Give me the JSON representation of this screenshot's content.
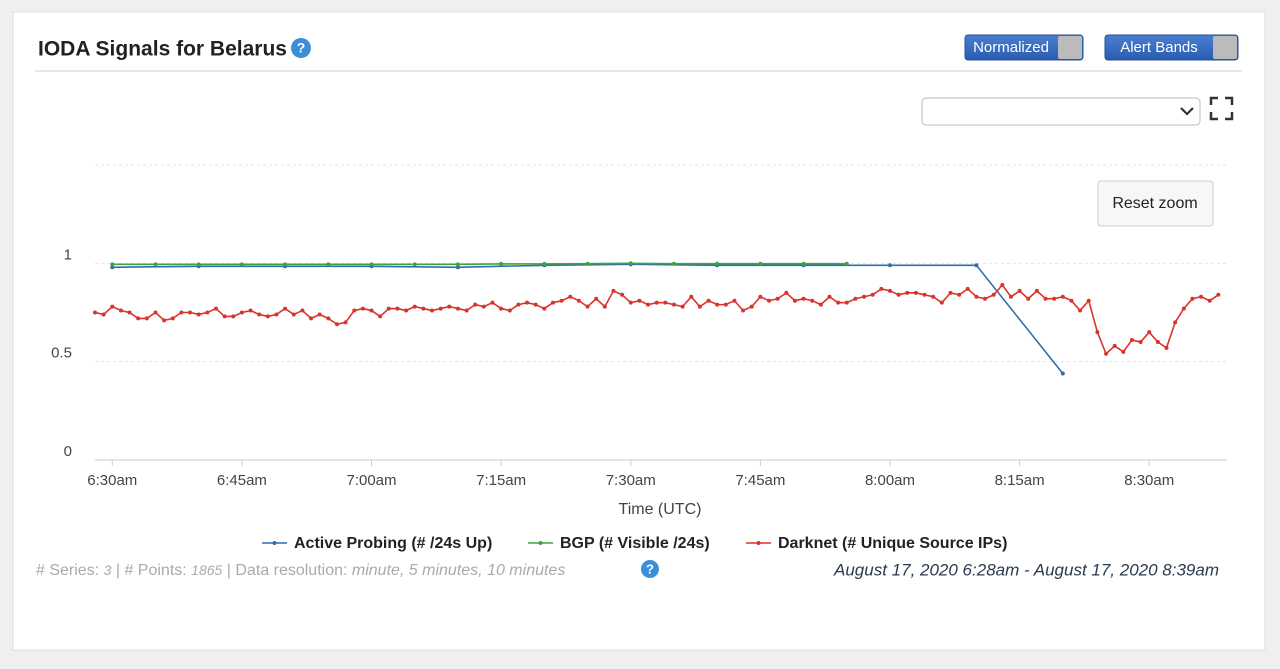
{
  "header": {
    "title": "IODA Signals for Belarus",
    "help_icon": "?"
  },
  "toggles": [
    "Normalized",
    "Alert Bands"
  ],
  "reset_zoom": "Reset zoom",
  "footer": {
    "series_label": "# Series:",
    "series_count": 3,
    "points_label": "| # Points:",
    "points_count": 1865,
    "resolution_label": "| Data resolution:",
    "resolution_value": "minute, 5 minutes, 10 minutes",
    "help_icon": "?",
    "date_range": "August 17, 2020 6:28am - August 17, 2020 8:39am"
  },
  "chart_data": {
    "type": "line",
    "xlabel": "Time (UTC)",
    "xlim": [
      "6:28am",
      "8:39am"
    ],
    "xticks": [
      "6:30am",
      "6:45am",
      "7:00am",
      "7:15am",
      "7:30am",
      "7:45am",
      "8:00am",
      "8:15am",
      "8:30am"
    ],
    "ylim": [
      0,
      1.5
    ],
    "yticks": [
      0,
      0.5,
      1
    ],
    "grid": true,
    "series": [
      {
        "name": "Active Probing (# /24s Up)",
        "color": "#2f6fb0",
        "x": [
          "6:30am",
          "6:40am",
          "6:50am",
          "7:00am",
          "7:10am",
          "7:20am",
          "7:30am",
          "7:40am",
          "7:50am",
          "8:00am",
          "8:10am",
          "8:20am"
        ],
        "values": [
          0.98,
          0.985,
          0.985,
          0.985,
          0.98,
          0.99,
          0.995,
          0.99,
          0.99,
          0.99,
          0.99,
          0.44
        ]
      },
      {
        "name": "BGP (# Visible /24s)",
        "color": "#3fa33f",
        "x": [
          "6:30am",
          "6:35am",
          "6:40am",
          "6:45am",
          "6:50am",
          "6:55am",
          "7:00am",
          "7:05am",
          "7:10am",
          "7:15am",
          "7:20am",
          "7:25am",
          "7:30am",
          "7:35am",
          "7:40am",
          "7:45am",
          "7:50am",
          "7:55am"
        ],
        "values": [
          0.995,
          0.995,
          0.995,
          0.995,
          0.995,
          0.995,
          0.995,
          0.995,
          0.995,
          0.997,
          0.997,
          0.998,
          1.0,
          0.998,
          0.998,
          0.998,
          0.998,
          0.998
        ]
      },
      {
        "name": "Darknet (# Unique Source IPs)",
        "color": "#d9342b",
        "x": [
          "6:28am",
          "6:29am",
          "6:30am",
          "6:31am",
          "6:32am",
          "6:33am",
          "6:34am",
          "6:35am",
          "6:36am",
          "6:37am",
          "6:38am",
          "6:39am",
          "6:40am",
          "6:41am",
          "6:42am",
          "6:43am",
          "6:44am",
          "6:45am",
          "6:46am",
          "6:47am",
          "6:48am",
          "6:49am",
          "6:50am",
          "6:51am",
          "6:52am",
          "6:53am",
          "6:54am",
          "6:55am",
          "6:56am",
          "6:57am",
          "6:58am",
          "6:59am",
          "7:00am",
          "7:01am",
          "7:02am",
          "7:03am",
          "7:04am",
          "7:05am",
          "7:06am",
          "7:07am",
          "7:08am",
          "7:09am",
          "7:10am",
          "7:11am",
          "7:12am",
          "7:13am",
          "7:14am",
          "7:15am",
          "7:16am",
          "7:17am",
          "7:18am",
          "7:19am",
          "7:20am",
          "7:21am",
          "7:22am",
          "7:23am",
          "7:24am",
          "7:25am",
          "7:26am",
          "7:27am",
          "7:28am",
          "7:29am",
          "7:30am",
          "7:31am",
          "7:32am",
          "7:33am",
          "7:34am",
          "7:35am",
          "7:36am",
          "7:37am",
          "7:38am",
          "7:39am",
          "7:40am",
          "7:41am",
          "7:42am",
          "7:43am",
          "7:44am",
          "7:45am",
          "7:46am",
          "7:47am",
          "7:48am",
          "7:49am",
          "7:50am",
          "7:51am",
          "7:52am",
          "7:53am",
          "7:54am",
          "7:55am",
          "7:56am",
          "7:57am",
          "7:58am",
          "7:59am",
          "8:00am",
          "8:01am",
          "8:02am",
          "8:03am",
          "8:04am",
          "8:05am",
          "8:06am",
          "8:07am",
          "8:08am",
          "8:09am",
          "8:10am",
          "8:11am",
          "8:12am",
          "8:13am",
          "8:14am",
          "8:15am",
          "8:16am",
          "8:17am",
          "8:18am",
          "8:19am",
          "8:20am",
          "8:21am",
          "8:22am",
          "8:23am",
          "8:24am",
          "8:25am",
          "8:26am",
          "8:27am",
          "8:28am",
          "8:29am",
          "8:30am",
          "8:31am",
          "8:32am",
          "8:33am",
          "8:34am",
          "8:35am",
          "8:36am",
          "8:37am",
          "8:38am"
        ],
        "values": [
          0.75,
          0.74,
          0.78,
          0.76,
          0.75,
          0.72,
          0.72,
          0.75,
          0.71,
          0.72,
          0.75,
          0.75,
          0.74,
          0.75,
          0.77,
          0.73,
          0.73,
          0.75,
          0.76,
          0.74,
          0.73,
          0.74,
          0.77,
          0.74,
          0.76,
          0.72,
          0.74,
          0.72,
          0.69,
          0.7,
          0.76,
          0.77,
          0.76,
          0.73,
          0.77,
          0.77,
          0.76,
          0.78,
          0.77,
          0.76,
          0.77,
          0.78,
          0.77,
          0.76,
          0.79,
          0.78,
          0.8,
          0.77,
          0.76,
          0.79,
          0.8,
          0.79,
          0.77,
          0.8,
          0.81,
          0.83,
          0.81,
          0.78,
          0.82,
          0.78,
          0.86,
          0.84,
          0.8,
          0.81,
          0.79,
          0.8,
          0.8,
          0.79,
          0.78,
          0.83,
          0.78,
          0.81,
          0.79,
          0.79,
          0.81,
          0.76,
          0.78,
          0.83,
          0.81,
          0.82,
          0.85,
          0.81,
          0.82,
          0.81,
          0.79,
          0.83,
          0.8,
          0.8,
          0.82,
          0.83,
          0.84,
          0.87,
          0.86,
          0.84,
          0.85,
          0.85,
          0.84,
          0.83,
          0.8,
          0.85,
          0.84,
          0.87,
          0.83,
          0.82,
          0.84,
          0.89,
          0.83,
          0.86,
          0.82,
          0.86,
          0.82,
          0.82,
          0.83,
          0.81,
          0.76,
          0.81,
          0.65,
          0.54,
          0.58,
          0.55,
          0.61,
          0.6,
          0.65,
          0.6,
          0.57,
          0.7,
          0.77,
          0.82,
          0.83,
          0.81,
          0.84
        ]
      }
    ]
  }
}
